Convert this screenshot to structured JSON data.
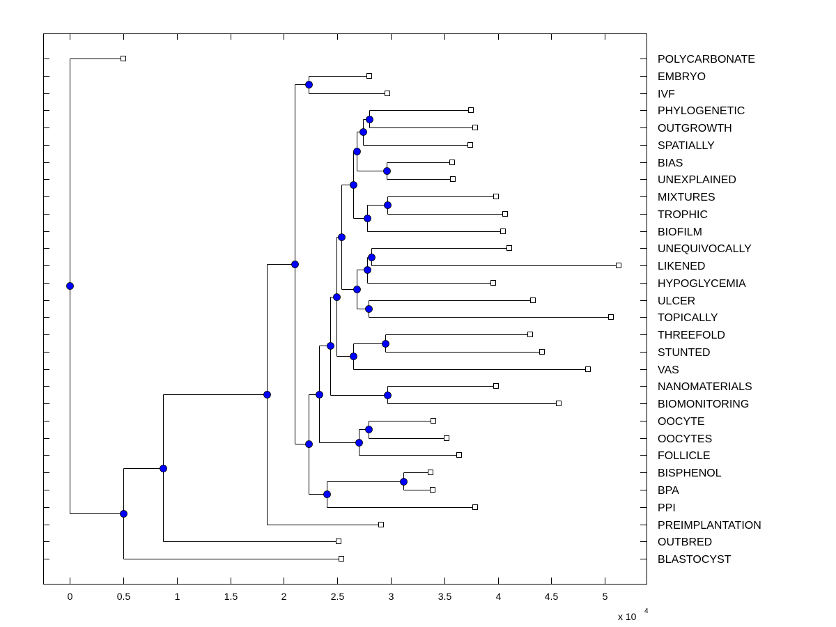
{
  "chart_data": {
    "type": "dendrogram",
    "title": "",
    "xlabel": "",
    "ylabel": "",
    "x_exponent_label": "x 10",
    "x_exponent_power": "4",
    "xlim": [
      -0.25,
      5.39
    ],
    "xticks": [
      0,
      0.5,
      1,
      1.5,
      2,
      2.5,
      3,
      3.5,
      4,
      4.5,
      5
    ],
    "xtick_labels": [
      "0",
      "0.5",
      "1",
      "1.5",
      "2",
      "2.5",
      "3",
      "3.5",
      "4",
      "4.5",
      "5"
    ],
    "grid": false,
    "colors": {
      "node_fill": "#0000ff",
      "leaf_fill": "#ffffff",
      "line": "#000000"
    },
    "leaves": [
      {
        "id": "POLYCARBONATE",
        "label": "POLYCARBONATE",
        "x": 0.5
      },
      {
        "id": "EMBRYO",
        "label": "EMBRYO",
        "x": 2.8
      },
      {
        "id": "IVF",
        "label": "IVF",
        "x": 2.97
      },
      {
        "id": "PHYLOGENETIC",
        "label": "PHYLOGENETIC",
        "x": 3.75
      },
      {
        "id": "OUTGROWTH",
        "label": "OUTGROWTH",
        "x": 3.79
      },
      {
        "id": "SPATIALLY",
        "label": "SPATIALLY",
        "x": 3.74
      },
      {
        "id": "BIAS",
        "label": "BIAS",
        "x": 3.57
      },
      {
        "id": "UNEXPLAINED",
        "label": "UNEXPLAINED",
        "x": 3.58
      },
      {
        "id": "MIXTURES",
        "label": "MIXTURES",
        "x": 3.98
      },
      {
        "id": "TROPHIC",
        "label": "TROPHIC",
        "x": 4.07
      },
      {
        "id": "BIOFILM",
        "label": "BIOFILM",
        "x": 4.05
      },
      {
        "id": "UNEQUIVOCALLY",
        "label": "UNEQUIVOCALLY",
        "x": 4.11
      },
      {
        "id": "LIKENED",
        "label": "LIKENED",
        "x": 5.13
      },
      {
        "id": "HYPOGLYCEMIA",
        "label": "HYPOGLYCEMIA",
        "x": 3.96
      },
      {
        "id": "ULCER",
        "label": "ULCER",
        "x": 4.33
      },
      {
        "id": "TOPICALLY",
        "label": "TOPICALLY",
        "x": 5.06
      },
      {
        "id": "THREEFOLD",
        "label": "THREEFOLD",
        "x": 4.3
      },
      {
        "id": "STUNTED",
        "label": "STUNTED",
        "x": 4.41
      },
      {
        "id": "VAS",
        "label": "VAS",
        "x": 4.84
      },
      {
        "id": "NANOMATERIALS",
        "label": "NANOMATERIALS",
        "x": 3.98
      },
      {
        "id": "BIOMONITORING",
        "label": "BIOMONITORING",
        "x": 4.57
      },
      {
        "id": "OOCYTE",
        "label": "OOCYTE",
        "x": 3.4
      },
      {
        "id": "OOCYTES",
        "label": "OOCYTES",
        "x": 3.52
      },
      {
        "id": "FOLLICLE",
        "label": "FOLLICLE",
        "x": 3.64
      },
      {
        "id": "BISPHENOL",
        "label": "BISPHENOL",
        "x": 3.37
      },
      {
        "id": "BPA",
        "label": "BPA",
        "x": 3.39
      },
      {
        "id": "PPI",
        "label": "PPI",
        "x": 3.79
      },
      {
        "id": "PREIMPLANTATION",
        "label": "PREIMPLANTATION",
        "x": 2.91
      },
      {
        "id": "OUTBRED",
        "label": "OUTBRED",
        "x": 2.51
      },
      {
        "id": "BLASTOCYST",
        "label": "BLASTOCYST",
        "x": 2.54
      }
    ],
    "internal_nodes": [
      {
        "id": "nA",
        "x": 2.23,
        "children": [
          "EMBRYO",
          "IVF"
        ]
      },
      {
        "id": "nB",
        "x": 2.8,
        "children": [
          "PHYLOGENETIC",
          "OUTGROWTH"
        ]
      },
      {
        "id": "nC",
        "x": 2.74,
        "children": [
          "nB",
          "SPATIALLY"
        ]
      },
      {
        "id": "nD",
        "x": 2.96,
        "children": [
          "BIAS",
          "UNEXPLAINED"
        ]
      },
      {
        "id": "nE",
        "x": 2.68,
        "children": [
          "nC",
          "nD"
        ]
      },
      {
        "id": "nF",
        "x": 2.97,
        "children": [
          "MIXTURES",
          "TROPHIC"
        ]
      },
      {
        "id": "nG",
        "x": 2.78,
        "children": [
          "nF",
          "BIOFILM"
        ]
      },
      {
        "id": "nH",
        "x": 2.65,
        "children": [
          "nE",
          "nG"
        ]
      },
      {
        "id": "nI",
        "x": 2.82,
        "children": [
          "UNEQUIVOCALLY",
          "LIKENED"
        ]
      },
      {
        "id": "nJ",
        "x": 2.78,
        "children": [
          "nI",
          "HYPOGLYCEMIA"
        ]
      },
      {
        "id": "nK",
        "x": 2.79,
        "children": [
          "ULCER",
          "TOPICALLY"
        ]
      },
      {
        "id": "nL",
        "x": 2.68,
        "children": [
          "nJ",
          "nK"
        ]
      },
      {
        "id": "nM",
        "x": 2.54,
        "children": [
          "nH",
          "nL"
        ]
      },
      {
        "id": "nN",
        "x": 2.95,
        "children": [
          "THREEFOLD",
          "STUNTED"
        ]
      },
      {
        "id": "nO",
        "x": 2.65,
        "children": [
          "nN",
          "VAS"
        ]
      },
      {
        "id": "nP",
        "x": 2.49,
        "children": [
          "nM",
          "nO"
        ]
      },
      {
        "id": "nQ",
        "x": 2.97,
        "children": [
          "NANOMATERIALS",
          "BIOMONITORING"
        ]
      },
      {
        "id": "nR",
        "x": 2.43,
        "children": [
          "nP",
          "nQ"
        ]
      },
      {
        "id": "nS",
        "x": 2.79,
        "children": [
          "OOCYTE",
          "OOCYTES"
        ]
      },
      {
        "id": "nT",
        "x": 2.7,
        "children": [
          "nS",
          "FOLLICLE"
        ]
      },
      {
        "id": "nU",
        "x": 2.33,
        "children": [
          "nR",
          "nT"
        ]
      },
      {
        "id": "nV",
        "x": 3.12,
        "children": [
          "BISPHENOL",
          "BPA"
        ]
      },
      {
        "id": "nW",
        "x": 2.4,
        "children": [
          "nV",
          "PPI"
        ]
      },
      {
        "id": "nX",
        "x": 2.23,
        "children": [
          "nU",
          "nW"
        ]
      },
      {
        "id": "nY",
        "x": 2.1,
        "children": [
          "nA",
          "nX"
        ]
      },
      {
        "id": "nZ",
        "x": 1.84,
        "children": [
          "nY",
          "PREIMPLANTATION"
        ]
      },
      {
        "id": "nAA",
        "x": 0.87,
        "children": [
          "nZ",
          "OUTBRED"
        ]
      },
      {
        "id": "nAB",
        "x": 0.5,
        "children": [
          "nAA",
          "BLASTOCYST"
        ]
      },
      {
        "id": "root",
        "x": 0.0,
        "children": [
          "POLYCARBONATE",
          "nAB"
        ]
      }
    ]
  }
}
